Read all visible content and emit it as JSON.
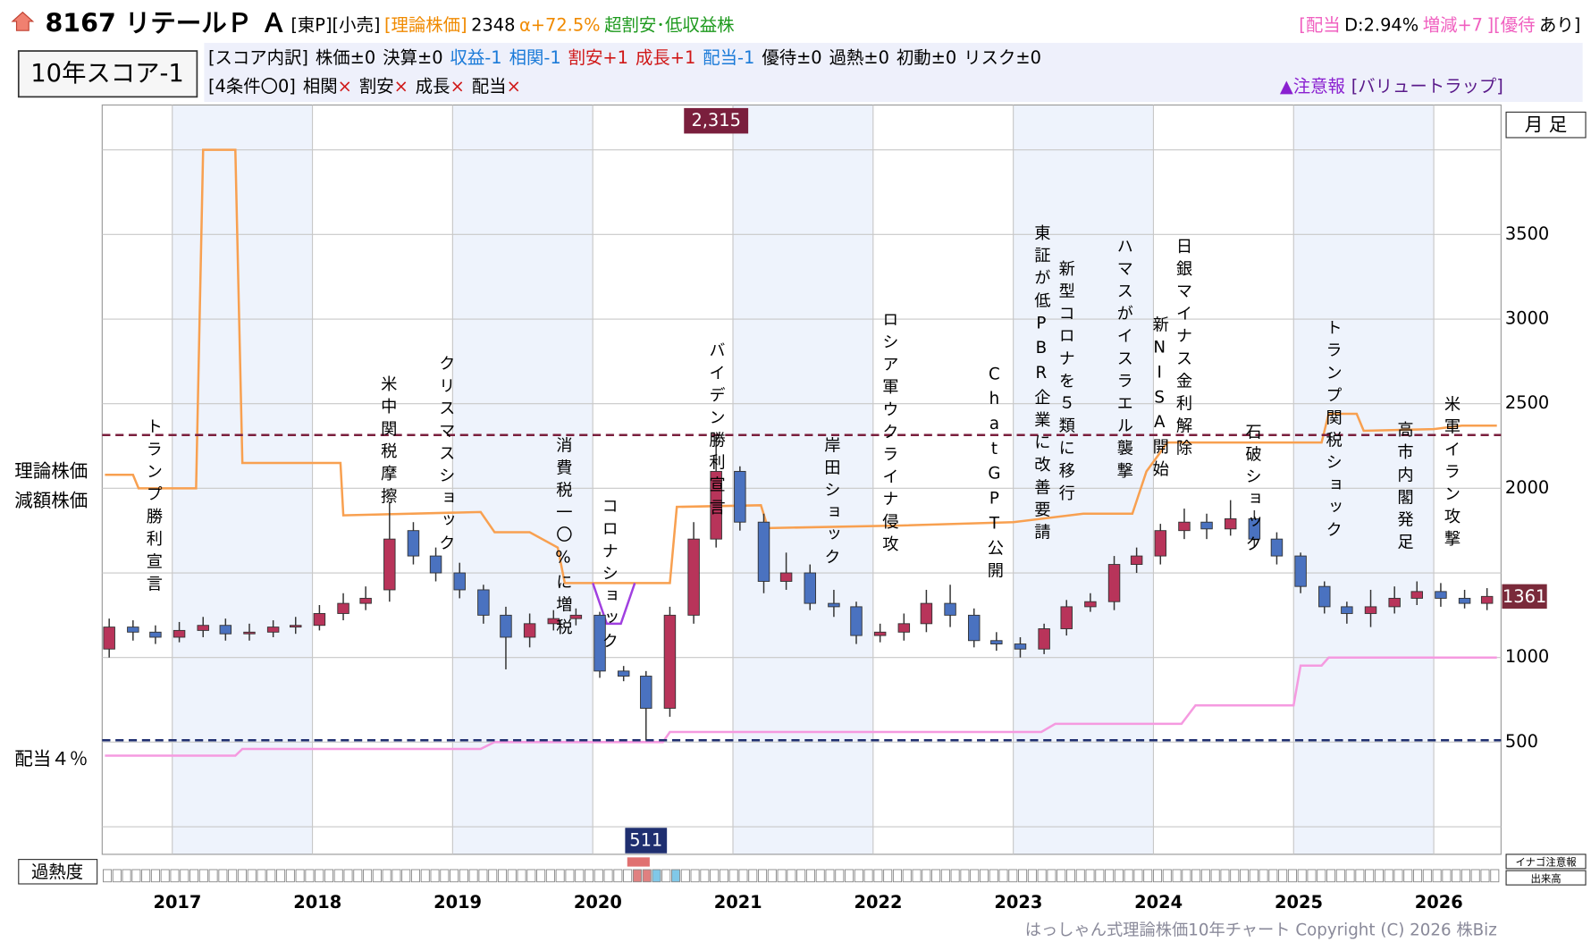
{
  "header": {
    "title": "8167 リテールＰ Ａ",
    "tags": [
      {
        "text": "[東P][小売]",
        "color": "#000000"
      },
      {
        "text": "[理論株価]",
        "color": "#f08a00"
      },
      {
        "text": "2348",
        "color": "#000000"
      },
      {
        "text": "α+72.5%",
        "color": "#f08a00"
      },
      {
        "text": "超割安･低収益株",
        "color": "#1e9a1e"
      }
    ],
    "badges": [
      {
        "text": "[配当",
        "color": "#f060c0"
      },
      {
        "text": "D:2.94%",
        "color": "#000000"
      },
      {
        "text": "増減+7",
        "color": "#f060c0"
      },
      {
        "text": "][優待",
        "color": "#f060c0"
      },
      {
        "text": "あり]",
        "color": "#000000"
      }
    ],
    "score": "10年スコア-1",
    "breakdown": [
      {
        "text": "[スコア内訳]",
        "color": "#000000"
      },
      {
        "text": "株価±0",
        "color": "#000000"
      },
      {
        "text": "決算±0",
        "color": "#000000"
      },
      {
        "text": "収益-1",
        "color": "#1a7ad8"
      },
      {
        "text": "相関-1",
        "color": "#1a7ad8"
      },
      {
        "text": "割安+1",
        "color": "#d01818"
      },
      {
        "text": "成長+1",
        "color": "#d01818"
      },
      {
        "text": "配当-1",
        "color": "#1a7ad8"
      },
      {
        "text": "優待±0",
        "color": "#000000"
      },
      {
        "text": "過熱±0",
        "color": "#000000"
      },
      {
        "text": "初動±0",
        "color": "#000000"
      },
      {
        "text": "リスク±0",
        "color": "#000000"
      }
    ],
    "conditions_title": "[4条件〇0]",
    "conditions": [
      {
        "text": "相関",
        "mark": "×"
      },
      {
        "text": "割安",
        "mark": "×"
      },
      {
        "text": "成長",
        "mark": "×"
      },
      {
        "text": "配当",
        "mark": "×"
      }
    ],
    "warning": "▲注意報",
    "warning_detail": "[バリュートラップ]",
    "period": "月 足",
    "heat": "過熱度",
    "inago": "イナゴ注意報",
    "volume": "出来高",
    "footer": "はっしゃん式理論株価10年チャート Copyright (C) 2026 株Biz"
  },
  "chart_data": {
    "type": "candlestick",
    "xlim": [
      2016.5,
      2026.48
    ],
    "xticks": [
      2017,
      2018,
      2019,
      2020,
      2021,
      2022,
      2023,
      2024,
      2025,
      2026
    ],
    "ylim": [
      -163,
      4265
    ],
    "yticks": [
      500,
      1000,
      2000,
      2500,
      3000,
      3500
    ],
    "ygrid": [
      0,
      500,
      1000,
      1500,
      2000,
      2500,
      3000,
      3500,
      4000
    ],
    "grid": true,
    "up_color": "#b8345a",
    "down_color": "#4a72c0",
    "candles": {
      "x": [
        2016.55,
        2016.72,
        2016.88,
        2017.05,
        2017.22,
        2017.38,
        2017.55,
        2017.72,
        2017.88,
        2018.05,
        2018.22,
        2018.38,
        2018.55,
        2018.72,
        2018.88,
        2019.05,
        2019.22,
        2019.38,
        2019.55,
        2019.72,
        2019.88,
        2020.05,
        2020.22,
        2020.38,
        2020.55,
        2020.72,
        2020.88,
        2021.05,
        2021.22,
        2021.38,
        2021.55,
        2021.72,
        2021.88,
        2022.05,
        2022.22,
        2022.38,
        2022.55,
        2022.72,
        2022.88,
        2023.05,
        2023.22,
        2023.38,
        2023.55,
        2023.72,
        2023.88,
        2024.05,
        2024.22,
        2024.38,
        2024.55,
        2024.72,
        2024.88,
        2025.05,
        2025.22,
        2025.38,
        2025.55,
        2025.72,
        2025.88,
        2026.05,
        2026.22,
        2026.38
      ],
      "open": [
        1050,
        1180,
        1150,
        1120,
        1160,
        1190,
        1140,
        1150,
        1180,
        1190,
        1260,
        1320,
        1400,
        1750,
        1600,
        1500,
        1400,
        1250,
        1120,
        1200,
        1230,
        1250,
        920,
        890,
        700,
        1250,
        1700,
        2100,
        1800,
        1450,
        1500,
        1320,
        1300,
        1130,
        1150,
        1200,
        1320,
        1250,
        1100,
        1080,
        1050,
        1170,
        1300,
        1330,
        1550,
        1600,
        1750,
        1800,
        1760,
        1820,
        1700,
        1600,
        1420,
        1300,
        1260,
        1300,
        1350,
        1390,
        1350,
        1320
      ],
      "high": [
        1230,
        1220,
        1190,
        1210,
        1240,
        1230,
        1200,
        1220,
        1240,
        1310,
        1380,
        1420,
        1920,
        1800,
        1650,
        1560,
        1430,
        1300,
        1260,
        1280,
        1290,
        1270,
        950,
        920,
        1300,
        1800,
        2315,
        2130,
        1850,
        1620,
        1550,
        1400,
        1330,
        1200,
        1260,
        1400,
        1430,
        1290,
        1150,
        1120,
        1200,
        1340,
        1380,
        1600,
        1650,
        1790,
        1880,
        1850,
        1930,
        1870,
        1740,
        1620,
        1450,
        1330,
        1400,
        1420,
        1450,
        1440,
        1400,
        1410
      ],
      "low": [
        1000,
        1100,
        1080,
        1090,
        1120,
        1100,
        1100,
        1120,
        1140,
        1160,
        1220,
        1280,
        1330,
        1550,
        1450,
        1350,
        1200,
        930,
        1060,
        1160,
        1190,
        880,
        860,
        511,
        650,
        1200,
        1650,
        1750,
        1380,
        1400,
        1280,
        1240,
        1080,
        1090,
        1100,
        1150,
        1180,
        1060,
        1040,
        1000,
        1020,
        1130,
        1270,
        1280,
        1500,
        1550,
        1700,
        1700,
        1720,
        1650,
        1550,
        1380,
        1260,
        1200,
        1180,
        1260,
        1310,
        1300,
        1290,
        1280
      ],
      "close": [
        1180,
        1150,
        1120,
        1160,
        1190,
        1140,
        1150,
        1180,
        1190,
        1260,
        1320,
        1350,
        1700,
        1600,
        1500,
        1400,
        1250,
        1120,
        1200,
        1230,
        1250,
        920,
        890,
        700,
        1250,
        1700,
        2100,
        1800,
        1450,
        1500,
        1320,
        1300,
        1130,
        1150,
        1200,
        1320,
        1250,
        1100,
        1080,
        1050,
        1170,
        1300,
        1330,
        1550,
        1600,
        1750,
        1800,
        1760,
        1820,
        1700,
        1600,
        1420,
        1300,
        1260,
        1300,
        1350,
        1390,
        1350,
        1320,
        1361
      ]
    },
    "series": [
      {
        "name": "理論株価",
        "color": "#f8a050",
        "x": [
          2016.52,
          2016.72,
          2016.76,
          2017.17,
          2017.22,
          2017.45,
          2017.5,
          2018.2,
          2018.22,
          2019.2,
          2019.3,
          2019.55,
          2019.75,
          2019.8,
          2020.55,
          2020.6,
          2021.2,
          2021.25,
          2022.2,
          2023.0,
          2023.5,
          2023.85,
          2023.95,
          2024.1,
          2025.2,
          2025.25,
          2025.45,
          2025.5,
          2026.0,
          2026.2,
          2026.45
        ],
        "values": [
          2080,
          2080,
          2000,
          2000,
          4000,
          4000,
          2150,
          2150,
          1840,
          1860,
          1740,
          1740,
          1650,
          1440,
          1440,
          1890,
          1900,
          1765,
          1780,
          1800,
          1850,
          1850,
          2100,
          2270,
          2270,
          2440,
          2440,
          2340,
          2350,
          2370,
          2370
        ]
      },
      {
        "name": "減額株価",
        "color": "#a040e0",
        "x": [
          2020.0,
          2020.1,
          2020.2,
          2020.3
        ],
        "values": [
          1440,
          1200,
          1200,
          1440
        ]
      },
      {
        "name": "配当４％",
        "color": "#f59ae0",
        "x": [
          2016.52,
          2017.45,
          2017.5,
          2019.2,
          2019.3,
          2020.5,
          2020.55,
          2023.2,
          2023.3,
          2024.2,
          2024.3,
          2025.0,
          2025.05,
          2025.2,
          2025.25,
          2026.45
        ],
        "values": [
          420,
          420,
          460,
          460,
          500,
          500,
          560,
          560,
          608,
          608,
          717,
          717,
          952,
          952,
          1000,
          1000
        ]
      }
    ],
    "hlines": [
      {
        "value": {
          "value": 2315,
          "label": "2,315"
        },
        "color": "#7a1f3d"
      },
      {
        "value": 511,
        "color": "#1f2f70"
      }
    ],
    "price_label": 1361,
    "annotations": [
      "トランプ勝利宣言",
      "米中関税摩擦",
      "クリスマスショック",
      "消費税一〇%に増税",
      "コロナショック",
      "バイデン勝利宣言",
      "岸田ショック",
      "ロシア軍ウクライナ侵攻",
      "ChatGPT公開",
      "東証が低PBR企業に改善要請",
      "新型コロナを５類に移行",
      "ハマスがイスラエル襲撃",
      "新NISA開始",
      "日銀マイナス金利解除",
      "石破ショック",
      "トランプ関税ショック",
      "高市内閣発足",
      "米軍イラン攻撃"
    ]
  }
}
